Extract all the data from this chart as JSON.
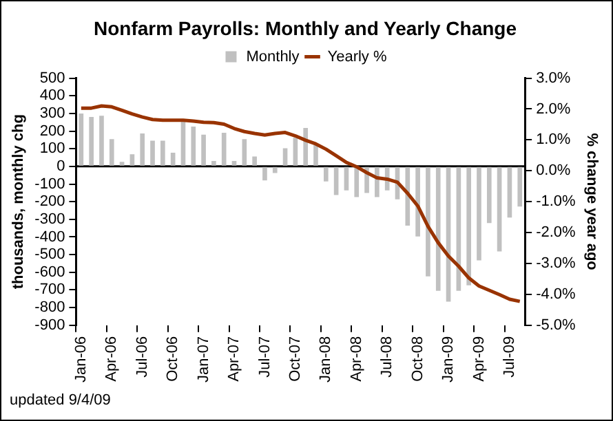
{
  "chart_data": {
    "type": "bar",
    "title": "Nonfarm Payrolls: Monthly and Yearly Change",
    "ylabel": "thousands, monthly chg",
    "y2label": "% change year ago",
    "annotations": [
      "updated 9/4/09"
    ],
    "categories": [
      "Jan-06",
      null,
      null,
      "Apr-06",
      null,
      null,
      "Jul-06",
      null,
      null,
      "Oct-06",
      null,
      null,
      "Jan-07",
      null,
      null,
      "Apr-07",
      null,
      null,
      "Jul-07",
      null,
      null,
      "Oct-07",
      null,
      null,
      "Jan-08",
      null,
      null,
      "Apr-08",
      null,
      null,
      "Jul-08",
      null,
      null,
      "Oct-08",
      null,
      null,
      "Jan-09",
      null,
      null,
      "Apr-09",
      null,
      null,
      "Jul-09",
      null
    ],
    "series": [
      {
        "name": "Monthly",
        "color": "#c0c0c0",
        "values": [
          300,
          280,
          287,
          154,
          26,
          69,
          187,
          146,
          146,
          77,
          262,
          226,
          180,
          31,
          190,
          31,
          154,
          56,
          -79,
          -38,
          103,
          162,
          218,
          121,
          -85,
          -162,
          -136,
          -174,
          -151,
          -174,
          -136,
          -187,
          -336,
          -397,
          -623,
          -705,
          -767,
          -705,
          -674,
          -533,
          -321,
          -482,
          -290,
          -228
        ]
      },
      {
        "name": "Yearly %",
        "type": "line",
        "axis": "y2",
        "color": "#993300",
        "values": [
          2.03,
          2.03,
          2.1,
          2.07,
          1.96,
          1.84,
          1.74,
          1.66,
          1.64,
          1.64,
          1.64,
          1.61,
          1.57,
          1.56,
          1.51,
          1.37,
          1.27,
          1.21,
          1.16,
          1.21,
          1.24,
          1.13,
          0.99,
          0.87,
          0.7,
          0.49,
          0.27,
          0.13,
          -0.06,
          -0.23,
          -0.27,
          -0.37,
          -0.73,
          -1.14,
          -1.8,
          -2.33,
          -2.76,
          -3.09,
          -3.47,
          -3.73,
          -3.87,
          -4.01,
          -4.16,
          -4.23
        ]
      }
    ],
    "ylim": [
      -900,
      500
    ],
    "yticks": [
      500,
      400,
      300,
      200,
      100,
      0,
      -100,
      -200,
      -300,
      -400,
      -500,
      -600,
      -700,
      -800,
      -900
    ],
    "y2lim": [
      -5,
      3
    ],
    "y2ticks": [
      {
        "value": 3,
        "label": "3.0%"
      },
      {
        "value": 2,
        "label": "2.0%"
      },
      {
        "value": 1,
        "label": "1.0%"
      },
      {
        "value": 0,
        "label": "0.0%"
      },
      {
        "value": -1,
        "label": "-1.0%"
      },
      {
        "value": -2,
        "label": "-2.0%"
      },
      {
        "value": -3,
        "label": "-3.0%"
      },
      {
        "value": -4,
        "label": "-4.0%"
      },
      {
        "value": -5,
        "label": "-5.0%"
      }
    ],
    "ref_lines": [
      {
        "axis": "y",
        "value": 0,
        "color": "#000000"
      }
    ],
    "grid": false,
    "legend": "top",
    "marker": "none",
    "line_style": "solid"
  }
}
